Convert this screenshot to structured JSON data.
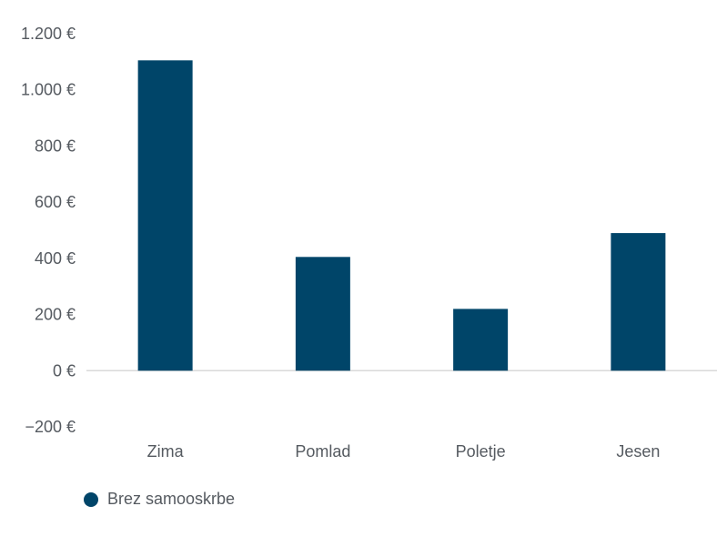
{
  "chart_data": {
    "type": "bar",
    "categories": [
      "Zima",
      "Pomlad",
      "Poletje",
      "Jesen"
    ],
    "series": [
      {
        "name": "Brez samooskrbe",
        "values": [
          1105,
          405,
          220,
          490
        ],
        "color": "#004569"
      }
    ],
    "ylim": [
      -200,
      1200
    ],
    "yticks": [
      -200,
      0,
      200,
      400,
      600,
      800,
      1000,
      1200
    ],
    "ytick_labels": [
      "−200 €",
      "0 €",
      "200 €",
      "400 €",
      "600 €",
      "800 €",
      "1.000 €",
      "1.200 €"
    ],
    "grid": false,
    "legend_position": "bottom-left"
  }
}
